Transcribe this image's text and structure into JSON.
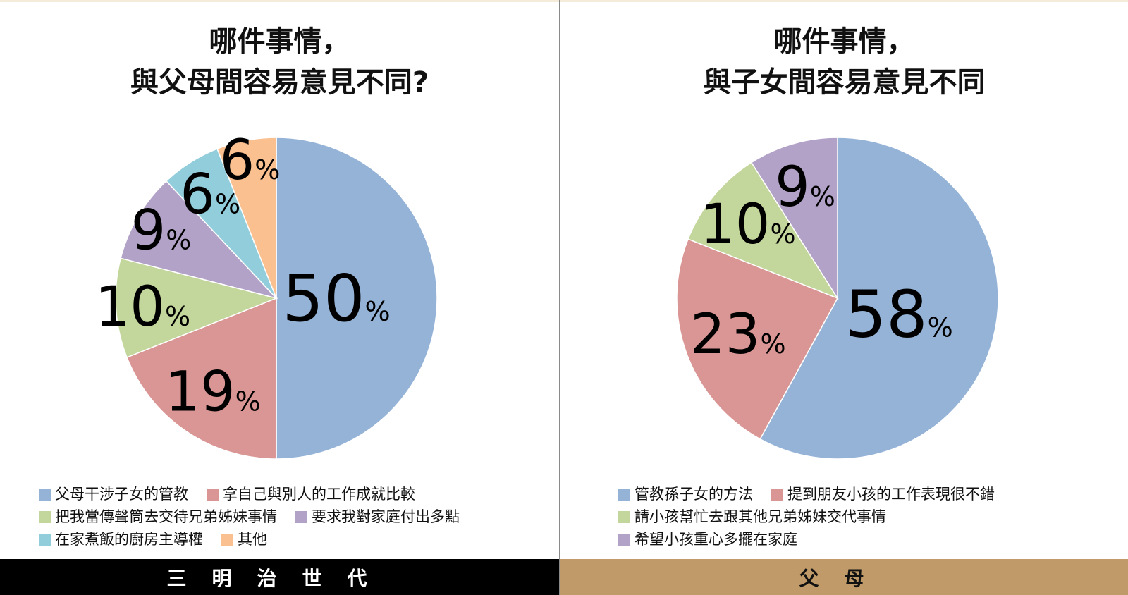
{
  "left": {
    "title_line1": "哪件事情，",
    "title_line2": "與父母間容易意見不同?",
    "footer": "三明治世代",
    "legend_rows": [
      [
        0,
        1
      ],
      [
        2,
        3
      ],
      [
        4,
        5
      ]
    ]
  },
  "right": {
    "title_line1": "哪件事情，",
    "title_line2": "與子女間容易意見不同",
    "footer": "父母",
    "legend_rows": [
      [
        0,
        1
      ],
      [
        2
      ],
      [
        3
      ]
    ]
  },
  "chart_data": [
    {
      "type": "pie",
      "title": "哪件事情，與父母間容易意見不同?",
      "unit": "%",
      "slices": [
        {
          "label": "父母干涉子女的管教",
          "value": 50,
          "color": "#95b3d7"
        },
        {
          "label": "拿自己與別人的工作成就比較",
          "value": 19,
          "color": "#d99694"
        },
        {
          "label": "把我當傳聲筒去交待兄弟姊妹事情",
          "value": 10,
          "color": "#c3d69b"
        },
        {
          "label": "要求我對家庭付出多點",
          "value": 9,
          "color": "#b2a2c7"
        },
        {
          "label": "在家煮飯的廚房主導權",
          "value": 6,
          "color": "#92cddc"
        },
        {
          "label": "其他",
          "value": 6,
          "color": "#fac090"
        }
      ]
    },
    {
      "type": "pie",
      "title": "哪件事情，與子女間容易意見不同",
      "unit": "%",
      "slices": [
        {
          "label": "管教孫子女的方法",
          "value": 58,
          "color": "#95b3d7"
        },
        {
          "label": "提到朋友小孩的工作表現很不錯",
          "value": 23,
          "color": "#d99694"
        },
        {
          "label": "請小孩幫忙去跟其他兄弟姊妹交代事情",
          "value": 10,
          "color": "#c3d69b"
        },
        {
          "label": "希望小孩重心多擺在家庭",
          "value": 9,
          "color": "#b2a2c7"
        }
      ]
    }
  ]
}
